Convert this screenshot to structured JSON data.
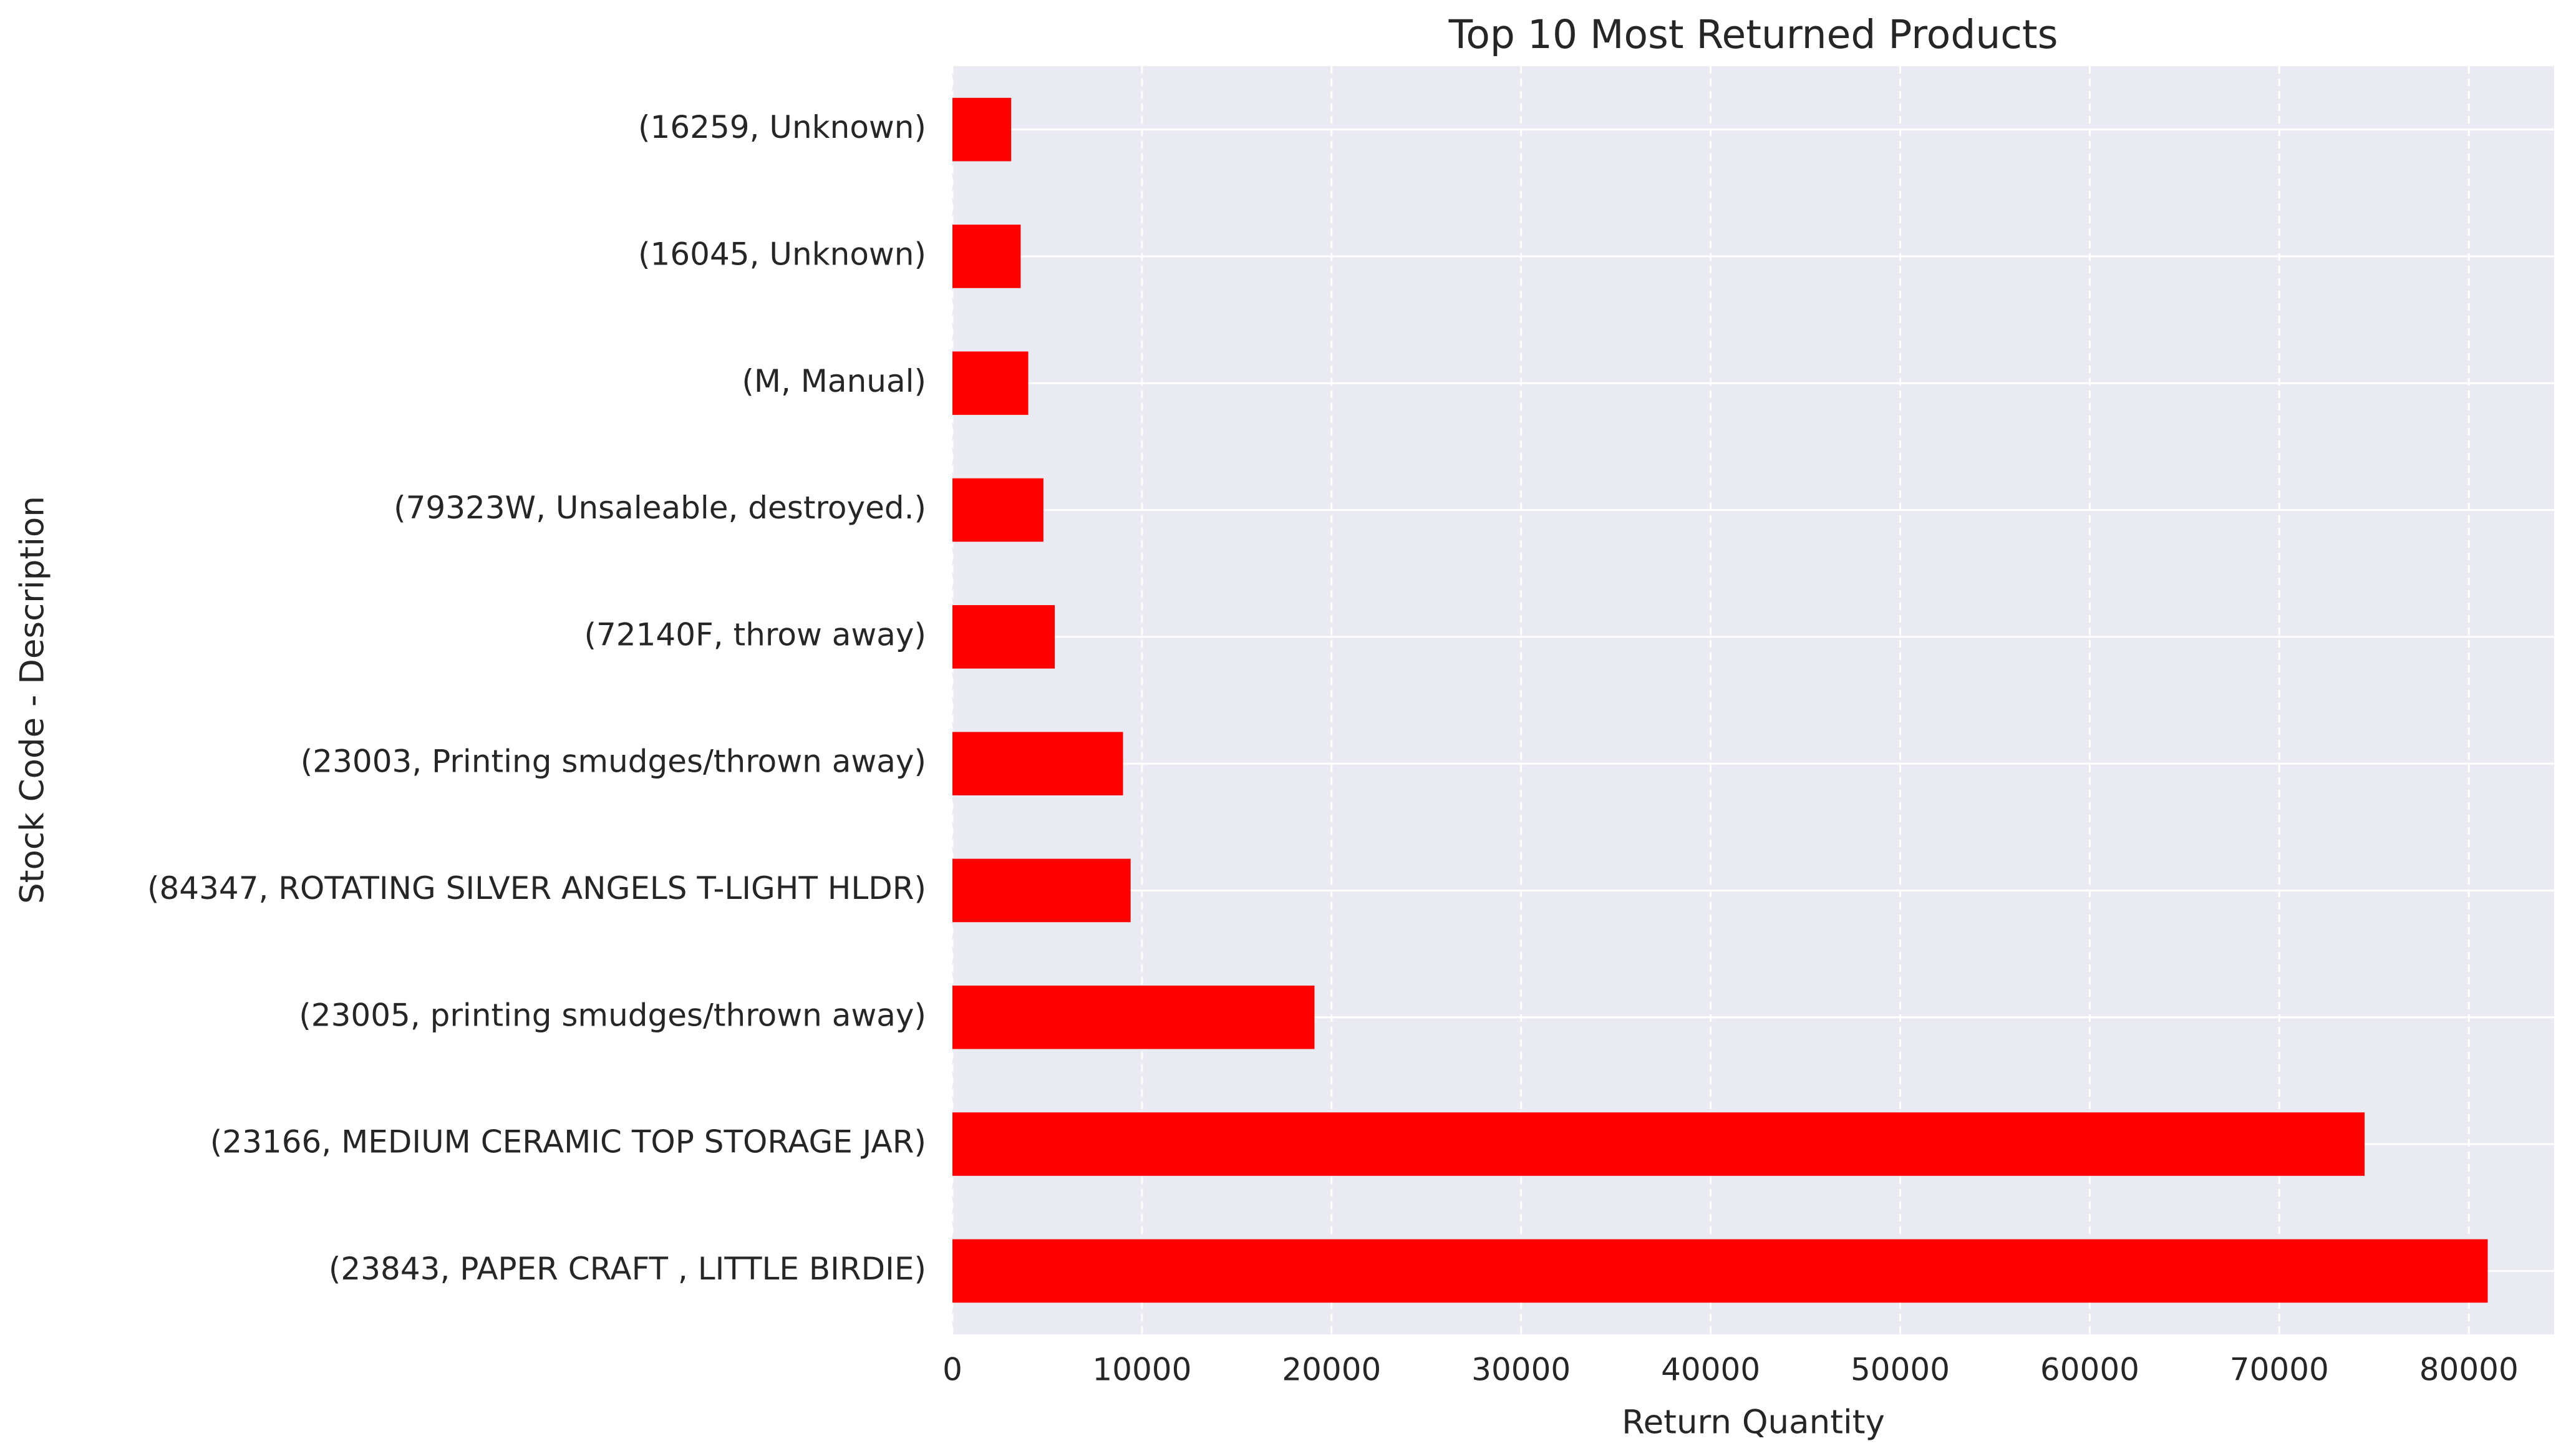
{
  "chart_data": {
    "type": "barh",
    "title": "Top 10 Most Returned Products",
    "x_label": "Return Quantity",
    "y_label": "Stock Code - Description",
    "categories": [
      "(23843, PAPER CRAFT , LITTLE BIRDIE)",
      "(23166, MEDIUM CERAMIC TOP STORAGE JAR)",
      "(23005, printing smudges/thrown away)",
      "(84347, ROTATING SILVER ANGELS T-LIGHT HLDR)",
      "(23003, Printing smudges/thrown away)",
      "(72140F, throw away)",
      "(79323W, Unsaleable, destroyed.)",
      "(M, Manual)",
      "(16045, Unknown)",
      "(16259, Unknown)"
    ],
    "values": [
      80995,
      74500,
      19100,
      9400,
      9000,
      5400,
      4800,
      4000,
      3600,
      3100
    ],
    "color": "#ff0000",
    "xlim": [
      0,
      84500
    ],
    "xticks": [
      0,
      10000,
      20000,
      30000,
      40000,
      50000,
      60000,
      70000,
      80000
    ],
    "grid": true
  }
}
